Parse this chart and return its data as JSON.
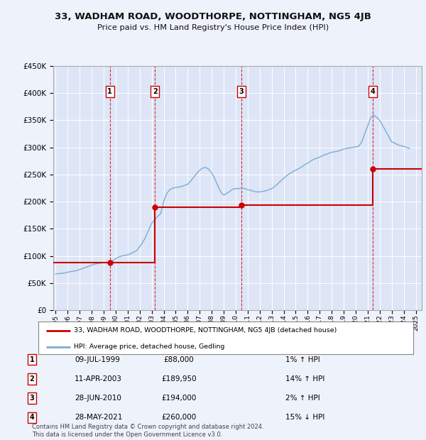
{
  "title": "33, WADHAM ROAD, WOODTHORPE, NOTTINGHAM, NG5 4JB",
  "subtitle": "Price paid vs. HM Land Registry's House Price Index (HPI)",
  "ylabel_ticks": [
    "£0",
    "£50K",
    "£100K",
    "£150K",
    "£200K",
    "£250K",
    "£300K",
    "£350K",
    "£400K",
    "£450K"
  ],
  "ylim": [
    0,
    450000
  ],
  "xlim_start": 1994.8,
  "xlim_end": 2025.5,
  "background_color": "#eef2fb",
  "plot_bg_color": "#dde5f7",
  "grid_color": "#ffffff",
  "sale_color": "#cc0000",
  "hpi_color": "#7aadd4",
  "sale_label": "33, WADHAM ROAD, WOODTHORPE, NOTTINGHAM, NG5 4JB (detached house)",
  "hpi_label": "HPI: Average price, detached house, Gedling",
  "transactions": [
    {
      "num": 1,
      "date": "09-JUL-1999",
      "year": 1999.52,
      "price": 88000,
      "pct": "1%",
      "dir": "↑"
    },
    {
      "num": 2,
      "date": "11-APR-2003",
      "year": 2003.28,
      "price": 189950,
      "pct": "14%",
      "dir": "↑"
    },
    {
      "num": 3,
      "date": "28-JUN-2010",
      "year": 2010.49,
      "price": 194000,
      "pct": "2%",
      "dir": "↑"
    },
    {
      "num": 4,
      "date": "28-MAY-2021",
      "year": 2021.41,
      "price": 260000,
      "pct": "15%",
      "dir": "↓"
    }
  ],
  "footer": "Contains HM Land Registry data © Crown copyright and database right 2024.\nThis data is licensed under the Open Government Licence v3.0.",
  "hpi_data": {
    "years": [
      1995.0,
      1995.25,
      1995.5,
      1995.75,
      1996.0,
      1996.25,
      1996.5,
      1996.75,
      1997.0,
      1997.25,
      1997.5,
      1997.75,
      1998.0,
      1998.25,
      1998.5,
      1998.75,
      1999.0,
      1999.25,
      1999.5,
      1999.75,
      2000.0,
      2000.25,
      2000.5,
      2000.75,
      2001.0,
      2001.25,
      2001.5,
      2001.75,
      2002.0,
      2002.25,
      2002.5,
      2002.75,
      2003.0,
      2003.25,
      2003.5,
      2003.75,
      2004.0,
      2004.25,
      2004.5,
      2004.75,
      2005.0,
      2005.25,
      2005.5,
      2005.75,
      2006.0,
      2006.25,
      2006.5,
      2006.75,
      2007.0,
      2007.25,
      2007.5,
      2007.75,
      2008.0,
      2008.25,
      2008.5,
      2008.75,
      2009.0,
      2009.25,
      2009.5,
      2009.75,
      2010.0,
      2010.25,
      2010.5,
      2010.75,
      2011.0,
      2011.25,
      2011.5,
      2011.75,
      2012.0,
      2012.25,
      2012.5,
      2012.75,
      2013.0,
      2013.25,
      2013.5,
      2013.75,
      2014.0,
      2014.25,
      2014.5,
      2014.75,
      2015.0,
      2015.25,
      2015.5,
      2015.75,
      2016.0,
      2016.25,
      2016.5,
      2016.75,
      2017.0,
      2017.25,
      2017.5,
      2017.75,
      2018.0,
      2018.25,
      2018.5,
      2018.75,
      2019.0,
      2019.25,
      2019.5,
      2019.75,
      2020.0,
      2020.25,
      2020.5,
      2020.75,
      2021.0,
      2021.25,
      2021.5,
      2021.75,
      2022.0,
      2022.25,
      2022.5,
      2022.75,
      2023.0,
      2023.25,
      2023.5,
      2023.75,
      2024.0,
      2024.25,
      2024.5
    ],
    "values": [
      67000,
      67500,
      68000,
      68500,
      70000,
      71000,
      72000,
      73000,
      75000,
      77000,
      79000,
      81000,
      83000,
      85000,
      86000,
      87000,
      87500,
      88000,
      89000,
      91000,
      95000,
      98000,
      100000,
      101000,
      102000,
      104000,
      107000,
      110000,
      117000,
      125000,
      135000,
      148000,
      160000,
      167000,
      173000,
      178000,
      200000,
      215000,
      222000,
      225000,
      226000,
      227000,
      228000,
      230000,
      232000,
      238000,
      245000,
      252000,
      258000,
      262000,
      263000,
      260000,
      253000,
      243000,
      230000,
      218000,
      212000,
      215000,
      219000,
      223000,
      224000,
      224000,
      225000,
      224000,
      222000,
      221000,
      219000,
      218000,
      218000,
      219000,
      220000,
      222000,
      224000,
      228000,
      233000,
      238000,
      243000,
      248000,
      252000,
      255000,
      258000,
      261000,
      264000,
      268000,
      271000,
      275000,
      278000,
      280000,
      282000,
      285000,
      287000,
      289000,
      291000,
      292000,
      293000,
      295000,
      297000,
      298000,
      299000,
      300000,
      301000,
      302000,
      310000,
      325000,
      340000,
      355000,
      360000,
      355000,
      350000,
      340000,
      330000,
      320000,
      310000,
      308000,
      305000,
      303000,
      302000,
      300000,
      298000
    ]
  }
}
